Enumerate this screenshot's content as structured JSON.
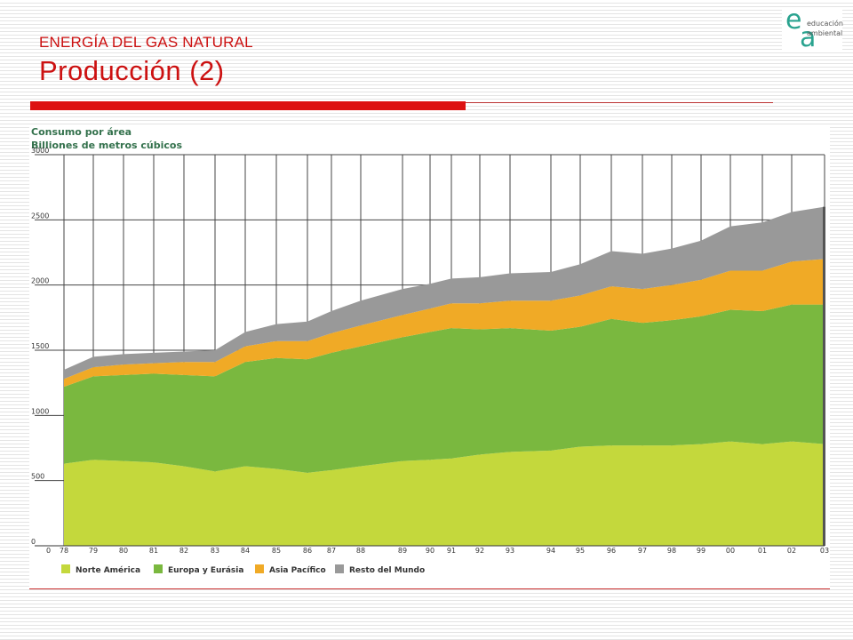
{
  "header": {
    "kicker": "ENERGÍA DEL GAS NATURAL",
    "title": "Producción (2)"
  },
  "logo": {
    "letter_e": "e",
    "letter_a": "a",
    "line1": "educación",
    "line2": "ambiental"
  },
  "colors": {
    "accent_red": "#dd1111",
    "logo_teal": "#2aa38f"
  },
  "chart_data": {
    "type": "area",
    "stacked": true,
    "title": "Consumo por área",
    "ylabel": "Billiones de metros cúbicos",
    "ylim": [
      0,
      3000
    ],
    "y_ticks": [
      "0",
      "500",
      "1000",
      "1500",
      "2000",
      "2500",
      "3000"
    ],
    "x_labels": [
      "78",
      "79",
      "80",
      "81",
      "82",
      "83",
      "84",
      "85",
      "86",
      "87",
      "88",
      "89",
      "90",
      "91",
      "92",
      "93",
      "94",
      "95",
      "96",
      "97",
      "98",
      "99",
      "00",
      "01",
      "02",
      "03"
    ],
    "legend_position": "bottom-left",
    "grid": true,
    "series": [
      {
        "name": "Norte América",
        "color": "#c4d83c",
        "values": [
          630,
          660,
          650,
          640,
          610,
          570,
          610,
          590,
          560,
          580,
          610,
          650,
          660,
          670,
          700,
          720,
          730,
          760,
          770,
          770,
          770,
          780,
          800,
          780,
          800,
          780
        ]
      },
      {
        "name": "Europa y Eurásia",
        "color": "#7ab83f",
        "values": [
          590,
          640,
          660,
          680,
          700,
          730,
          800,
          850,
          870,
          900,
          920,
          950,
          980,
          1000,
          960,
          950,
          920,
          920,
          970,
          940,
          960,
          980,
          1010,
          1020,
          1050,
          1070
        ]
      },
      {
        "name": "Asia Pacífico",
        "color": "#f0aa26",
        "values": [
          60,
          70,
          80,
          80,
          100,
          110,
          120,
          130,
          140,
          150,
          160,
          170,
          180,
          190,
          200,
          210,
          230,
          240,
          250,
          260,
          270,
          280,
          300,
          310,
          330,
          350
        ]
      },
      {
        "name": "Resto del Mundo",
        "color": "#999999",
        "values": [
          70,
          80,
          80,
          80,
          80,
          90,
          110,
          130,
          150,
          170,
          190,
          200,
          190,
          190,
          200,
          210,
          220,
          240,
          270,
          270,
          280,
          300,
          340,
          370,
          380,
          400
        ]
      }
    ]
  }
}
